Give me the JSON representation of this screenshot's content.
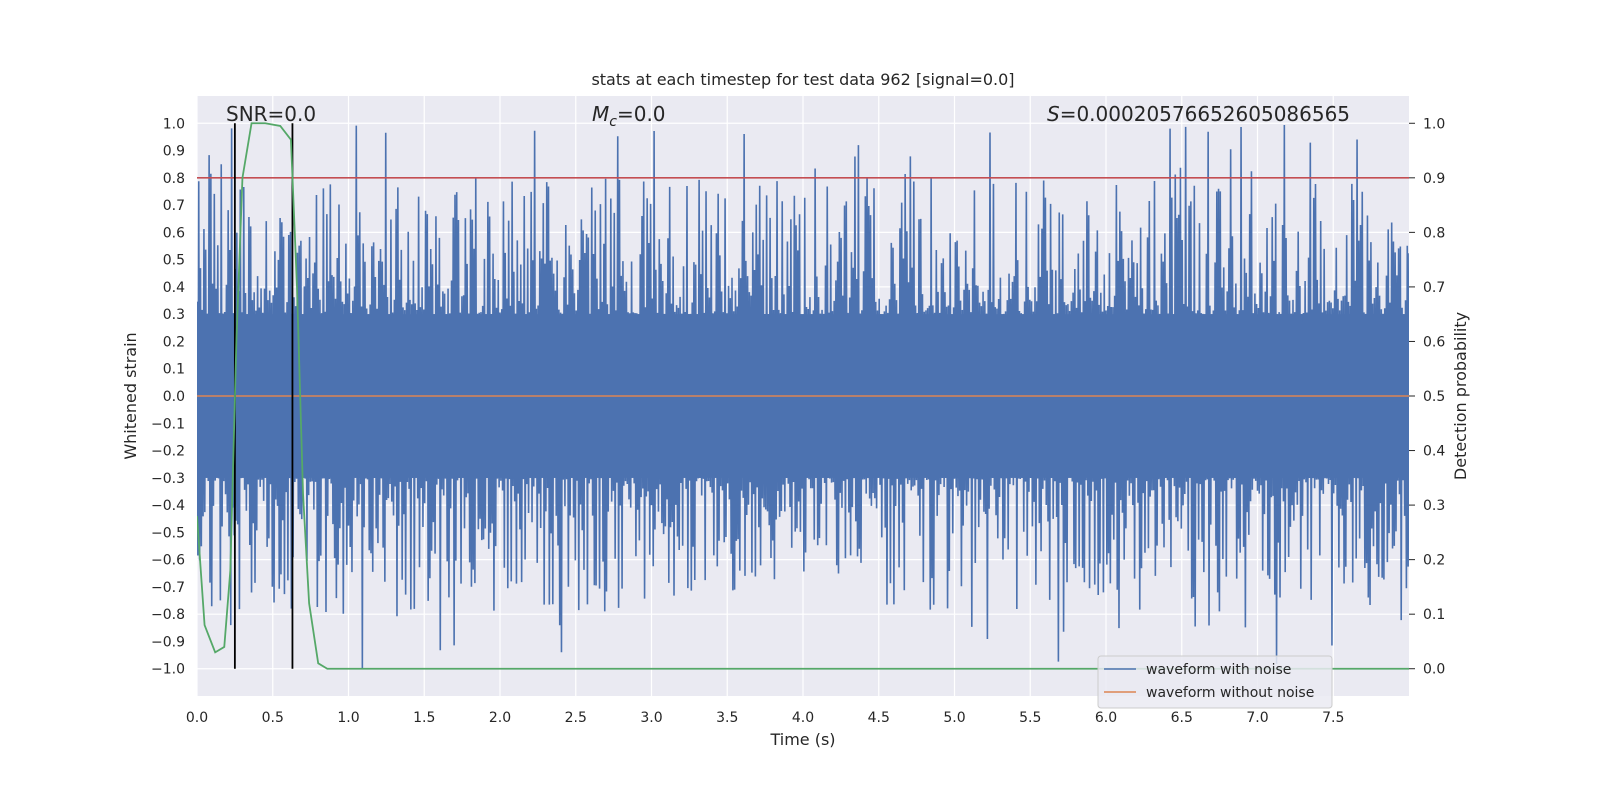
{
  "chart_data": {
    "type": "line",
    "title": "stats at each timestep for test data 962 [signal=0.0]",
    "xlabel": "Time (s)",
    "ylabel": "Whitened strain",
    "ylabel_right": "Detection probability",
    "xlim": [
      0.0,
      8.0
    ],
    "ylim": [
      -1.1,
      1.1
    ],
    "ylim_right": [
      -0.05,
      1.05
    ],
    "x_ticks": [
      "0.0",
      "0.5",
      "1.0",
      "1.5",
      "2.0",
      "2.5",
      "3.0",
      "3.5",
      "4.0",
      "4.5",
      "5.0",
      "5.5",
      "6.0",
      "6.5",
      "7.0",
      "7.5"
    ],
    "y_ticks": [
      "1.0",
      "0.9",
      "0.8",
      "0.7",
      "0.6",
      "0.5",
      "0.4",
      "0.3",
      "0.2",
      "0.1",
      "0.0",
      "−0.1",
      "−0.2",
      "−0.3",
      "−0.4",
      "−0.5",
      "−0.6",
      "−0.7",
      "−0.8",
      "−0.9",
      "−1.0"
    ],
    "y_right_ticks": [
      "1.0",
      "0.9",
      "0.8",
      "0.7",
      "0.6",
      "0.5",
      "0.4",
      "0.3",
      "0.2",
      "0.1",
      "0.0"
    ],
    "annotations": {
      "snr": "SNR=0.0",
      "mc_symbol": "M",
      "mc_sub": "c",
      "mc_value": "=0.0",
      "s_symbol": "S",
      "s_value": "=0.00020576652605086565"
    },
    "threshold_right": 0.9,
    "vertical_lines_x": [
      0.25,
      0.63
    ],
    "series": [
      {
        "name": "waveform with noise",
        "color": "#4c72b0",
        "style": "dense noise, amplitude approx ±0.3 to ±0.9, occasional peaks to ±1.0"
      },
      {
        "name": "waveform without noise",
        "color": "#dd8452",
        "values_y": 0.0
      },
      {
        "name": "detection probability",
        "color": "#55a868",
        "axis": "right",
        "x": [
          0.0,
          0.05,
          0.12,
          0.18,
          0.22,
          0.26,
          0.3,
          0.36,
          0.45,
          0.55,
          0.62,
          0.66,
          0.7,
          0.74,
          0.8,
          0.86,
          0.95,
          2.0,
          4.0,
          6.0,
          7.0,
          8.0
        ],
        "values": [
          0.28,
          0.08,
          0.03,
          0.04,
          0.18,
          0.6,
          0.9,
          1.0,
          1.0,
          0.995,
          0.97,
          0.7,
          0.32,
          0.12,
          0.01,
          0.0,
          0.0,
          0.0,
          0.0,
          0.0,
          0.0,
          0.0
        ]
      }
    ],
    "legend": {
      "position": "lower right",
      "entries": [
        "waveform with noise",
        "waveform without noise"
      ]
    },
    "colors": {
      "plot_bg": "#eaeaf2",
      "grid": "#ffffff",
      "threshold": "#c44e52",
      "vline": "#000000"
    }
  }
}
